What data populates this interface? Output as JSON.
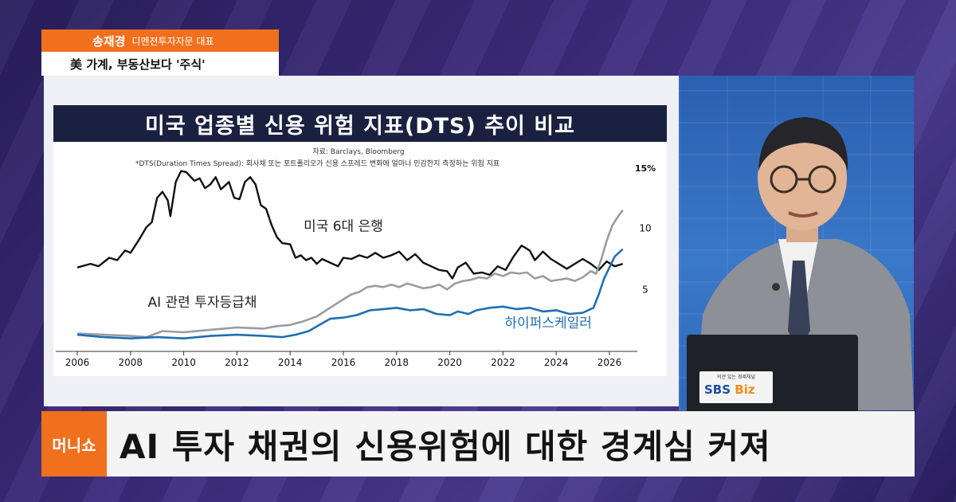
{
  "overlay": {
    "speaker_name": "송재경",
    "speaker_role": "디멘젼투자자문 대표",
    "topic": "美 가계, 부동산보다 '주식'",
    "program_logo": "머니쇼",
    "headline": "AI 투자 채권의 신용위험에 대한 경계심 커져"
  },
  "laptop": {
    "badge_tagline": "의견 있는 경제채널",
    "badge_logo_a": "SBS",
    "badge_logo_b": "Biz"
  },
  "chart_data": {
    "type": "line",
    "title": "미국 업종별 신용 위험 지표(DTS) 추이 비교",
    "source": "자료: Barclays, Bloomberg",
    "note": "*DTS(Duration Times Spread): 회사채 또는 포트폴리오가 신용 스프레드 변화에 얼마나 민감한지 측정하는 위험 지표",
    "y_unit_label": "15%",
    "y_ticks": [
      {
        "value": 10,
        "label": "10"
      },
      {
        "value": 5,
        "label": "5"
      }
    ],
    "ylim": [
      0,
      15
    ],
    "xlim": [
      2006,
      2026.6
    ],
    "x_ticks": [
      "2006",
      "2008",
      "2010",
      "2012",
      "2014",
      "2016",
      "2018",
      "2020",
      "2022",
      "2024",
      "2026"
    ],
    "colors": {
      "bank": "#111111",
      "ai_ig": "#9a9ca3",
      "hyperscaler": "#1f6fb3"
    },
    "series": [
      {
        "name": "미국 6대 은행",
        "key": "bank",
        "points": [
          [
            2006,
            6.8
          ],
          [
            2006.5,
            7.1
          ],
          [
            2006.8,
            6.9
          ],
          [
            2007.2,
            7.6
          ],
          [
            2007.5,
            7.4
          ],
          [
            2007.8,
            8.2
          ],
          [
            2008.0,
            8.0
          ],
          [
            2008.3,
            9.0
          ],
          [
            2008.6,
            10.1
          ],
          [
            2008.8,
            10.5
          ],
          [
            2009.0,
            12.5
          ],
          [
            2009.2,
            13.0
          ],
          [
            2009.4,
            12.3
          ],
          [
            2009.5,
            11.0
          ],
          [
            2009.7,
            13.8
          ],
          [
            2009.9,
            14.7
          ],
          [
            2010.1,
            14.6
          ],
          [
            2010.4,
            13.9
          ],
          [
            2010.6,
            14.1
          ],
          [
            2010.8,
            13.3
          ],
          [
            2011.0,
            13.6
          ],
          [
            2011.2,
            14.2
          ],
          [
            2011.4,
            13.2
          ],
          [
            2011.7,
            13.8
          ],
          [
            2011.9,
            12.5
          ],
          [
            2012.1,
            12.4
          ],
          [
            2012.3,
            13.8
          ],
          [
            2012.5,
            14.2
          ],
          [
            2012.7,
            13.6
          ],
          [
            2012.9,
            11.9
          ],
          [
            2013.1,
            11.6
          ],
          [
            2013.3,
            10.3
          ],
          [
            2013.5,
            9.3
          ],
          [
            2013.7,
            8.8
          ],
          [
            2014.0,
            8.7
          ],
          [
            2014.2,
            7.6
          ],
          [
            2014.4,
            7.8
          ],
          [
            2014.6,
            7.4
          ],
          [
            2014.8,
            7.6
          ],
          [
            2015.0,
            7.1
          ],
          [
            2015.2,
            7.5
          ],
          [
            2015.5,
            7.2
          ],
          [
            2015.8,
            6.9
          ],
          [
            2016.0,
            7.6
          ],
          [
            2016.3,
            7.5
          ],
          [
            2016.6,
            7.8
          ],
          [
            2016.9,
            7.6
          ],
          [
            2017.2,
            8.0
          ],
          [
            2017.5,
            7.6
          ],
          [
            2017.8,
            7.8
          ],
          [
            2018.1,
            8.1
          ],
          [
            2018.4,
            7.4
          ],
          [
            2018.7,
            7.9
          ],
          [
            2019.0,
            7.2
          ],
          [
            2019.3,
            6.9
          ],
          [
            2019.6,
            6.6
          ],
          [
            2019.9,
            6.5
          ],
          [
            2020.1,
            5.9
          ],
          [
            2020.3,
            6.8
          ],
          [
            2020.6,
            7.2
          ],
          [
            2020.9,
            6.3
          ],
          [
            2021.2,
            6.4
          ],
          [
            2021.5,
            6.2
          ],
          [
            2021.8,
            6.9
          ],
          [
            2022.1,
            6.6
          ],
          [
            2022.4,
            7.7
          ],
          [
            2022.7,
            8.6
          ],
          [
            2023.0,
            8.2
          ],
          [
            2023.2,
            7.4
          ],
          [
            2023.5,
            8.1
          ],
          [
            2023.8,
            7.5
          ],
          [
            2024.1,
            7.1
          ],
          [
            2024.4,
            6.7
          ],
          [
            2024.7,
            7.1
          ],
          [
            2025.0,
            7.5
          ],
          [
            2025.3,
            7.1
          ],
          [
            2025.6,
            6.6
          ],
          [
            2025.9,
            7.3
          ],
          [
            2026.2,
            6.9
          ],
          [
            2026.5,
            7.1
          ]
        ],
        "label_year": 2016.0,
        "label_value": 9.8
      },
      {
        "name": "AI 관련 투자등급채",
        "key": "ai_ig",
        "points": [
          [
            2006,
            1.4
          ],
          [
            2007,
            1.3
          ],
          [
            2008,
            1.2
          ],
          [
            2008.6,
            1.1
          ],
          [
            2009.2,
            1.6
          ],
          [
            2010,
            1.5
          ],
          [
            2011,
            1.7
          ],
          [
            2012,
            1.9
          ],
          [
            2013,
            1.8
          ],
          [
            2013.5,
            2.0
          ],
          [
            2014,
            2.1
          ],
          [
            2014.5,
            2.4
          ],
          [
            2015,
            2.8
          ],
          [
            2015.5,
            3.5
          ],
          [
            2016,
            4.2
          ],
          [
            2016.3,
            4.6
          ],
          [
            2016.6,
            4.8
          ],
          [
            2016.9,
            5.2
          ],
          [
            2017.2,
            5.3
          ],
          [
            2017.5,
            5.2
          ],
          [
            2017.8,
            5.4
          ],
          [
            2018.1,
            5.2
          ],
          [
            2018.4,
            5.5
          ],
          [
            2018.7,
            5.3
          ],
          [
            2019.0,
            5.1
          ],
          [
            2019.3,
            5.2
          ],
          [
            2019.6,
            5.4
          ],
          [
            2019.9,
            5.0
          ],
          [
            2020.2,
            5.5
          ],
          [
            2020.5,
            5.7
          ],
          [
            2020.8,
            5.8
          ],
          [
            2021.1,
            6.0
          ],
          [
            2021.4,
            5.9
          ],
          [
            2021.7,
            6.3
          ],
          [
            2022.0,
            6.1
          ],
          [
            2022.3,
            6.4
          ],
          [
            2022.6,
            6.3
          ],
          [
            2022.9,
            6.4
          ],
          [
            2023.2,
            5.9
          ],
          [
            2023.5,
            6.1
          ],
          [
            2023.8,
            5.7
          ],
          [
            2024.1,
            5.8
          ],
          [
            2024.4,
            5.9
          ],
          [
            2024.7,
            5.7
          ],
          [
            2025.0,
            6.0
          ],
          [
            2025.3,
            6.5
          ],
          [
            2025.5,
            6.3
          ],
          [
            2025.7,
            7.5
          ],
          [
            2025.9,
            9.0
          ],
          [
            2026.1,
            10.2
          ],
          [
            2026.3,
            10.9
          ],
          [
            2026.5,
            11.5
          ]
        ],
        "label_year": 2010.7,
        "label_value": 3.6
      },
      {
        "name": "하이퍼스케일러",
        "key": "hyperscaler",
        "points": [
          [
            2006,
            1.3
          ],
          [
            2007,
            1.1
          ],
          [
            2008,
            1.0
          ],
          [
            2009,
            1.1
          ],
          [
            2010,
            1.0
          ],
          [
            2011,
            1.2
          ],
          [
            2012,
            1.3
          ],
          [
            2013,
            1.2
          ],
          [
            2013.7,
            1.1
          ],
          [
            2014.2,
            1.3
          ],
          [
            2014.7,
            1.6
          ],
          [
            2015.1,
            2.1
          ],
          [
            2015.5,
            2.6
          ],
          [
            2016,
            2.7
          ],
          [
            2016.5,
            2.9
          ],
          [
            2017,
            3.3
          ],
          [
            2017.5,
            3.4
          ],
          [
            2018,
            3.5
          ],
          [
            2018.5,
            3.3
          ],
          [
            2019,
            3.4
          ],
          [
            2019.5,
            3.0
          ],
          [
            2020,
            2.9
          ],
          [
            2020.3,
            3.2
          ],
          [
            2020.7,
            3.0
          ],
          [
            2021,
            3.3
          ],
          [
            2021.5,
            3.5
          ],
          [
            2022,
            3.6
          ],
          [
            2022.5,
            3.4
          ],
          [
            2023,
            3.5
          ],
          [
            2023.5,
            3.2
          ],
          [
            2024,
            3.3
          ],
          [
            2024.5,
            3.0
          ],
          [
            2025,
            3.1
          ],
          [
            2025.4,
            3.5
          ],
          [
            2025.6,
            4.6
          ],
          [
            2025.8,
            5.9
          ],
          [
            2026.0,
            6.8
          ],
          [
            2026.2,
            7.7
          ],
          [
            2026.5,
            8.3
          ]
        ],
        "label_year": 2023.7,
        "label_value": 1.9
      }
    ]
  }
}
